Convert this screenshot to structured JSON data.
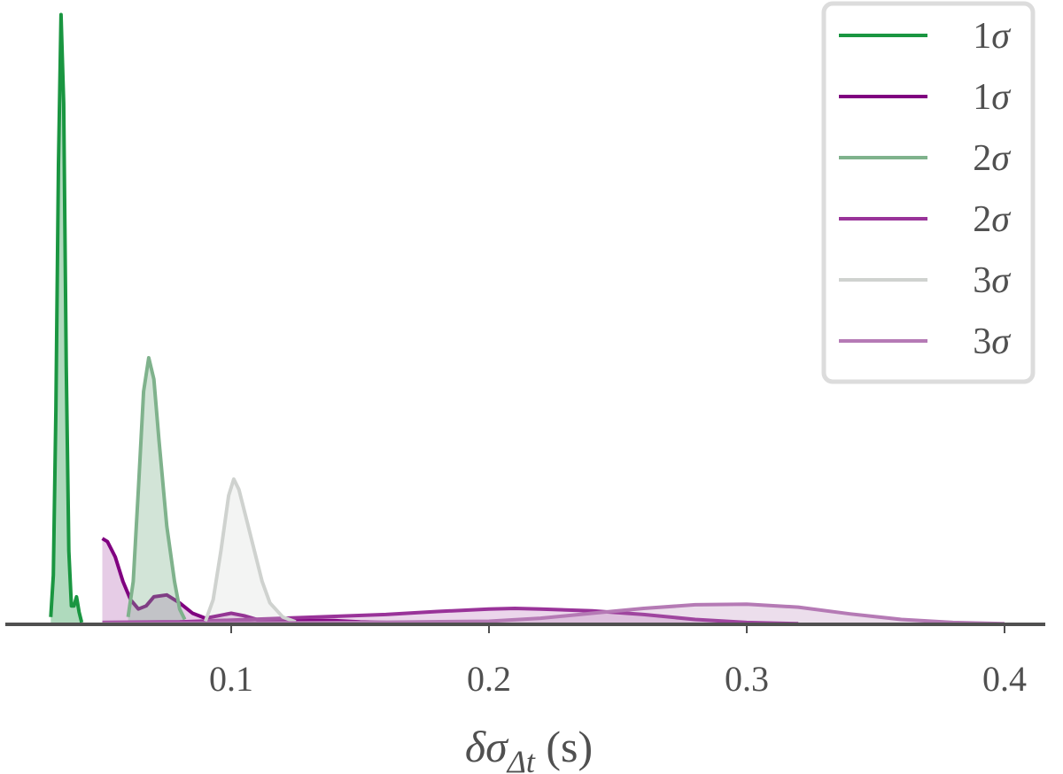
{
  "chart_data": {
    "type": "area",
    "title": "",
    "xlabel": {
      "delta": "δσ",
      "subscript": "Δt",
      "unit": " (s)"
    },
    "ylabel": "",
    "xlim": [
      0.0,
      0.41
    ],
    "ylim": [
      0,
      1.0
    ],
    "xticks": [
      0.1,
      0.2,
      0.3,
      0.4
    ],
    "xtick_labels": [
      "0.1",
      "0.2",
      "0.3",
      "0.4"
    ],
    "grid": false,
    "legend": {
      "placement": "top-right",
      "entries": [
        {
          "number": "1",
          "symbol": "σ",
          "series_index": 0
        },
        {
          "number": "1",
          "symbol": "σ",
          "series_index": 1
        },
        {
          "number": "2",
          "symbol": "σ",
          "series_index": 2
        },
        {
          "number": "2",
          "symbol": "σ",
          "series_index": 3
        },
        {
          "number": "3",
          "symbol": "σ",
          "series_index": 4
        },
        {
          "number": "3",
          "symbol": "σ",
          "series_index": 5
        }
      ]
    },
    "series": [
      {
        "color": "#1a9641",
        "fill_opacity": 0.35,
        "points": [
          [
            0.03,
            0.012
          ],
          [
            0.031,
            0.08
          ],
          [
            0.032,
            0.35
          ],
          [
            0.033,
            0.75
          ],
          [
            0.034,
            0.995
          ],
          [
            0.035,
            0.85
          ],
          [
            0.036,
            0.42
          ],
          [
            0.037,
            0.12
          ],
          [
            0.038,
            0.03
          ],
          [
            0.039,
            0.03
          ],
          [
            0.04,
            0.045
          ],
          [
            0.041,
            0.02
          ],
          [
            0.042,
            0.003
          ]
        ]
      },
      {
        "color": "#800080",
        "fill_opacity": 0.2,
        "points": [
          [
            0.05,
            0.14
          ],
          [
            0.052,
            0.135
          ],
          [
            0.055,
            0.11
          ],
          [
            0.058,
            0.07
          ],
          [
            0.061,
            0.04
          ],
          [
            0.064,
            0.025
          ],
          [
            0.067,
            0.03
          ],
          [
            0.07,
            0.045
          ],
          [
            0.075,
            0.048
          ],
          [
            0.08,
            0.035
          ],
          [
            0.085,
            0.018
          ],
          [
            0.09,
            0.01
          ],
          [
            0.095,
            0.014
          ],
          [
            0.1,
            0.018
          ],
          [
            0.105,
            0.014
          ],
          [
            0.11,
            0.008
          ],
          [
            0.12,
            0.006
          ],
          [
            0.14,
            0.006
          ],
          [
            0.15,
            0.004
          ],
          [
            0.16,
            0.003
          ]
        ]
      },
      {
        "color": "#7fb28c",
        "fill_opacity": 0.35,
        "points": [
          [
            0.06,
            0.012
          ],
          [
            0.062,
            0.07
          ],
          [
            0.064,
            0.22
          ],
          [
            0.066,
            0.38
          ],
          [
            0.068,
            0.435
          ],
          [
            0.07,
            0.4
          ],
          [
            0.072,
            0.3
          ],
          [
            0.075,
            0.16
          ],
          [
            0.078,
            0.07
          ],
          [
            0.08,
            0.025
          ],
          [
            0.082,
            0.008
          ]
        ]
      },
      {
        "color": "#993399",
        "fill_opacity": 0.2,
        "points": [
          [
            0.05,
            0.003
          ],
          [
            0.08,
            0.004
          ],
          [
            0.1,
            0.007
          ],
          [
            0.12,
            0.01
          ],
          [
            0.14,
            0.013
          ],
          [
            0.16,
            0.016
          ],
          [
            0.18,
            0.021
          ],
          [
            0.2,
            0.025
          ],
          [
            0.21,
            0.026
          ],
          [
            0.22,
            0.025
          ],
          [
            0.24,
            0.022
          ],
          [
            0.26,
            0.016
          ],
          [
            0.28,
            0.008
          ],
          [
            0.3,
            0.003
          ],
          [
            0.32,
            0.001
          ]
        ]
      },
      {
        "color": "#cfd2cf",
        "fill_opacity": 0.25,
        "points": [
          [
            0.09,
            0.005
          ],
          [
            0.093,
            0.04
          ],
          [
            0.096,
            0.12
          ],
          [
            0.099,
            0.21
          ],
          [
            0.101,
            0.237
          ],
          [
            0.103,
            0.22
          ],
          [
            0.106,
            0.17
          ],
          [
            0.109,
            0.12
          ],
          [
            0.112,
            0.07
          ],
          [
            0.115,
            0.035
          ],
          [
            0.12,
            0.012
          ],
          [
            0.125,
            0.004
          ]
        ]
      },
      {
        "color": "#b57ab5",
        "fill_opacity": 0.25,
        "points": [
          [
            0.05,
            0.002
          ],
          [
            0.1,
            0.002
          ],
          [
            0.15,
            0.003
          ],
          [
            0.2,
            0.005
          ],
          [
            0.22,
            0.01
          ],
          [
            0.24,
            0.018
          ],
          [
            0.26,
            0.026
          ],
          [
            0.28,
            0.032
          ],
          [
            0.3,
            0.033
          ],
          [
            0.32,
            0.028
          ],
          [
            0.34,
            0.017
          ],
          [
            0.36,
            0.008
          ],
          [
            0.38,
            0.003
          ],
          [
            0.4,
            0.001
          ]
        ]
      }
    ]
  }
}
